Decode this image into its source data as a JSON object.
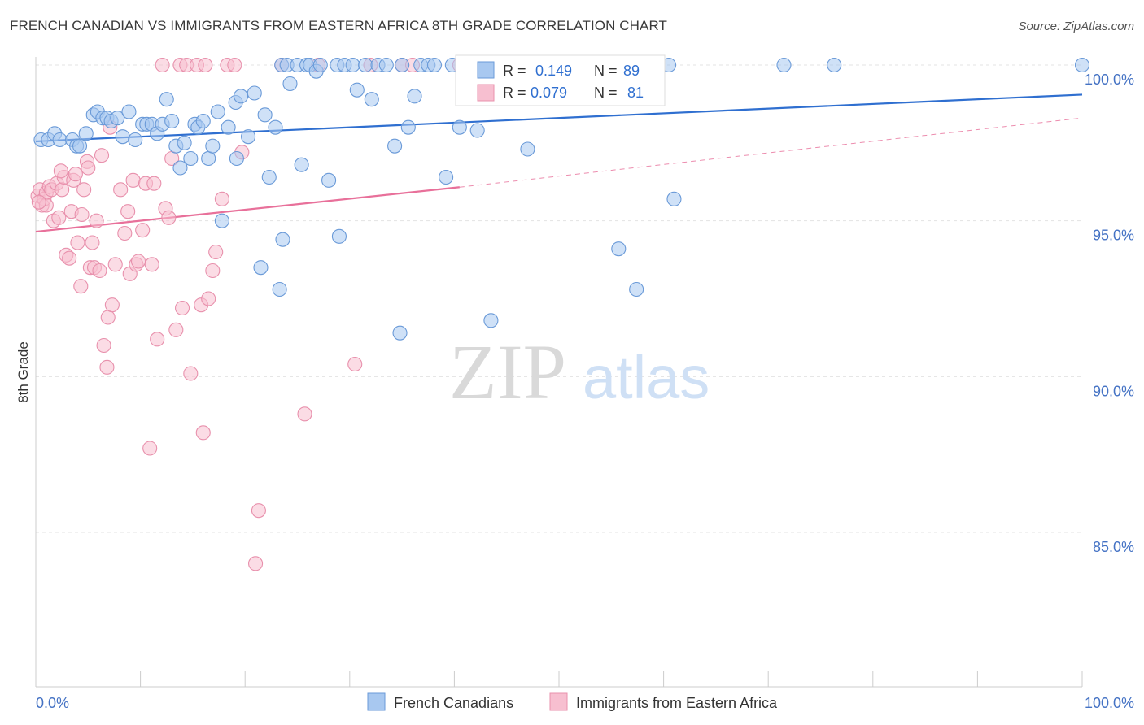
{
  "title": "FRENCH CANADIAN VS IMMIGRANTS FROM EASTERN AFRICA 8TH GRADE CORRELATION CHART",
  "source": "Source: ZipAtlas.com",
  "watermark": {
    "zip": "ZIP",
    "atlas": "atlas"
  },
  "legend": {
    "r_label": "R =",
    "n_label": "N =",
    "rows": [
      {
        "r": "0.149",
        "n": "89",
        "color": "#a8c8f0",
        "stroke": "#6a9ad8"
      },
      {
        "r": "0.079",
        "n": "81",
        "color": "#f7bfd0",
        "stroke": "#e890ac"
      }
    ]
  },
  "chart_data": {
    "type": "scatter",
    "title": "FRENCH CANADIAN VS IMMIGRANTS FROM EASTERN AFRICA 8TH GRADE CORRELATION CHART",
    "xlabel": "",
    "ylabel": "8th Grade",
    "xlim": [
      0,
      100
    ],
    "ylim": [
      80.5,
      100.4
    ],
    "x_tick_labels": [
      "0.0%",
      "100.0%"
    ],
    "y_ticks": [
      100,
      95,
      90,
      85
    ],
    "y_tick_labels": [
      "100.0%",
      "95.0%",
      "90.0%",
      "85.0%"
    ],
    "grid": true,
    "legend_position": "top-center",
    "series": [
      {
        "name": "French Canadians",
        "color": "#6a9ad8",
        "fill": "#a8c8f0",
        "trend": {
          "x": [
            0,
            100
          ],
          "y": [
            97.55,
            99.05
          ],
          "style": "solid",
          "color": "#2f6fd0"
        },
        "points": [
          [
            0.5,
            97.6
          ],
          [
            1.2,
            97.6
          ],
          [
            1.8,
            97.8
          ],
          [
            2.3,
            97.6
          ],
          [
            3.5,
            97.6
          ],
          [
            3.9,
            97.4
          ],
          [
            4.2,
            97.4
          ],
          [
            4.8,
            97.8
          ],
          [
            5.5,
            98.4
          ],
          [
            5.9,
            98.5
          ],
          [
            6.4,
            98.3
          ],
          [
            6.8,
            98.3
          ],
          [
            7.2,
            98.2
          ],
          [
            7.8,
            98.3
          ],
          [
            8.3,
            97.7
          ],
          [
            8.9,
            98.5
          ],
          [
            9.5,
            97.6
          ],
          [
            10.2,
            98.1
          ],
          [
            10.6,
            98.1
          ],
          [
            11.1,
            98.1
          ],
          [
            11.6,
            97.8
          ],
          [
            12.1,
            98.1
          ],
          [
            12.5,
            98.9
          ],
          [
            13.0,
            98.2
          ],
          [
            13.4,
            97.4
          ],
          [
            13.8,
            96.7
          ],
          [
            14.2,
            97.5
          ],
          [
            14.8,
            97.0
          ],
          [
            15.2,
            98.1
          ],
          [
            15.5,
            98.0
          ],
          [
            16.0,
            98.2
          ],
          [
            16.5,
            97.0
          ],
          [
            16.9,
            97.4
          ],
          [
            17.4,
            98.5
          ],
          [
            17.8,
            95.0
          ],
          [
            18.4,
            98.0
          ],
          [
            19.2,
            97.0
          ],
          [
            19.1,
            98.8
          ],
          [
            19.6,
            99.0
          ],
          [
            20.3,
            97.7
          ],
          [
            20.9,
            99.1
          ],
          [
            21.5,
            93.5
          ],
          [
            21.9,
            98.4
          ],
          [
            22.3,
            96.4
          ],
          [
            22.9,
            98.0
          ],
          [
            23.5,
            100.0
          ],
          [
            23.3,
            92.8
          ],
          [
            23.6,
            94.4
          ],
          [
            24.0,
            100.0
          ],
          [
            24.3,
            99.4
          ],
          [
            25.0,
            100.0
          ],
          [
            25.4,
            96.8
          ],
          [
            25.9,
            100.0
          ],
          [
            26.2,
            100.0
          ],
          [
            26.8,
            99.8
          ],
          [
            27.2,
            100.0
          ],
          [
            28.0,
            96.3
          ],
          [
            28.8,
            100.0
          ],
          [
            29.0,
            94.5
          ],
          [
            29.5,
            100.0
          ],
          [
            30.3,
            100.0
          ],
          [
            30.7,
            99.2
          ],
          [
            31.5,
            100.0
          ],
          [
            32.1,
            98.9
          ],
          [
            32.7,
            100.0
          ],
          [
            33.5,
            100.0
          ],
          [
            34.3,
            97.4
          ],
          [
            35.0,
            100.0
          ],
          [
            34.8,
            91.4
          ],
          [
            35.6,
            98.0
          ],
          [
            36.2,
            99.0
          ],
          [
            36.8,
            100.0
          ],
          [
            37.5,
            100.0
          ],
          [
            38.1,
            100.0
          ],
          [
            39.2,
            96.4
          ],
          [
            39.8,
            100.0
          ],
          [
            40.5,
            98.0
          ],
          [
            42.0,
            100.0
          ],
          [
            42.2,
            97.9
          ],
          [
            43.5,
            91.8
          ],
          [
            47.0,
            97.3
          ],
          [
            55.0,
            100.0
          ],
          [
            55.7,
            94.1
          ],
          [
            57.4,
            92.8
          ],
          [
            60.5,
            100.0
          ],
          [
            61.0,
            95.7
          ],
          [
            71.5,
            100.0
          ],
          [
            76.3,
            100.0
          ],
          [
            100.0,
            100.0
          ]
        ]
      },
      {
        "name": "Immigrants from Eastern Africa",
        "color": "#e890ac",
        "fill": "#f7bfd0",
        "trend": {
          "x": [
            0,
            40.5,
            100
          ],
          "y": [
            94.65,
            96.08,
            98.3
          ],
          "style": "solid-then-dashed",
          "color": "#e8709a"
        },
        "points": [
          [
            0.2,
            95.8
          ],
          [
            0.4,
            96.0
          ],
          [
            0.6,
            95.5
          ],
          [
            0.8,
            95.7
          ],
          [
            1.0,
            95.9
          ],
          [
            1.3,
            96.1
          ],
          [
            1.5,
            96.0
          ],
          [
            1.7,
            95.0
          ],
          [
            2.0,
            96.2
          ],
          [
            2.2,
            95.1
          ],
          [
            2.5,
            96.0
          ],
          [
            2.7,
            96.4
          ],
          [
            2.9,
            93.9
          ],
          [
            3.2,
            93.8
          ],
          [
            3.4,
            95.3
          ],
          [
            3.6,
            96.3
          ],
          [
            3.8,
            96.5
          ],
          [
            4.0,
            94.3
          ],
          [
            4.3,
            92.9
          ],
          [
            4.4,
            95.2
          ],
          [
            4.6,
            96.0
          ],
          [
            4.9,
            96.9
          ],
          [
            5.0,
            96.7
          ],
          [
            5.2,
            93.5
          ],
          [
            5.4,
            94.3
          ],
          [
            5.6,
            93.5
          ],
          [
            5.8,
            95.0
          ],
          [
            6.1,
            93.4
          ],
          [
            6.3,
            97.1
          ],
          [
            6.5,
            91.0
          ],
          [
            6.8,
            90.3
          ],
          [
            6.9,
            91.9
          ],
          [
            7.1,
            98.0
          ],
          [
            7.3,
            92.3
          ],
          [
            7.6,
            93.6
          ],
          [
            8.1,
            96.0
          ],
          [
            8.5,
            94.6
          ],
          [
            8.8,
            95.3
          ],
          [
            9.0,
            93.3
          ],
          [
            9.3,
            96.3
          ],
          [
            9.6,
            93.6
          ],
          [
            9.8,
            93.7
          ],
          [
            10.2,
            94.7
          ],
          [
            10.5,
            96.2
          ],
          [
            10.9,
            87.7
          ],
          [
            11.1,
            93.6
          ],
          [
            11.3,
            96.2
          ],
          [
            11.6,
            91.2
          ],
          [
            12.1,
            100.0
          ],
          [
            12.4,
            95.4
          ],
          [
            12.7,
            95.1
          ],
          [
            13.0,
            97.0
          ],
          [
            13.4,
            91.5
          ],
          [
            13.8,
            100.0
          ],
          [
            14.0,
            92.2
          ],
          [
            14.4,
            100.0
          ],
          [
            14.8,
            90.1
          ],
          [
            15.4,
            100.0
          ],
          [
            15.8,
            92.3
          ],
          [
            16.0,
            88.2
          ],
          [
            16.2,
            100.0
          ],
          [
            16.5,
            92.5
          ],
          [
            16.9,
            93.4
          ],
          [
            17.2,
            94.0
          ],
          [
            17.8,
            95.7
          ],
          [
            18.3,
            100.0
          ],
          [
            19.0,
            100.0
          ],
          [
            19.7,
            97.2
          ],
          [
            21.0,
            84.0
          ],
          [
            21.3,
            85.7
          ],
          [
            23.5,
            100.0
          ],
          [
            25.7,
            88.8
          ],
          [
            27.0,
            100.0
          ],
          [
            30.5,
            90.4
          ],
          [
            32.0,
            100.0
          ],
          [
            35.0,
            100.0
          ],
          [
            36.0,
            100.0
          ],
          [
            40.5,
            100.0
          ],
          [
            1.0,
            95.5
          ],
          [
            2.4,
            96.6
          ],
          [
            0.3,
            95.6
          ]
        ]
      }
    ]
  },
  "bottom_legend": [
    {
      "label": "French Canadians",
      "fill": "#a8c8f0",
      "stroke": "#6a9ad8"
    },
    {
      "label": "Immigrants from Eastern Africa",
      "fill": "#f7bfd0",
      "stroke": "#e890ac"
    }
  ]
}
